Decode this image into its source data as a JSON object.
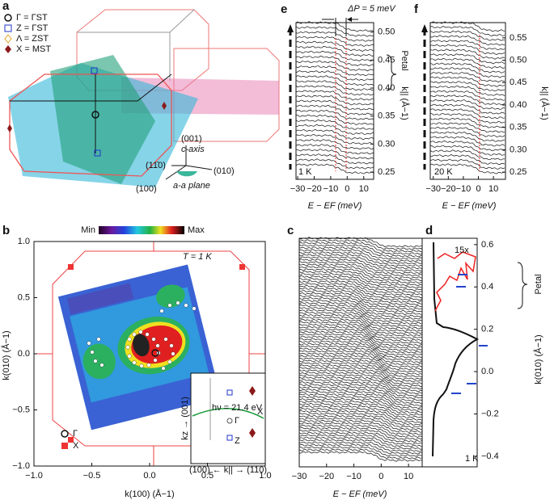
{
  "a": {
    "label": "a",
    "legend": [
      "Γ = ΓST",
      "Z = ΓST",
      "Λ = ZST",
      "X = MST"
    ],
    "axes": [
      "(001)",
      "c-axis",
      "(11̄0)",
      "(010)",
      "(100)",
      "a-a plane"
    ]
  },
  "b": {
    "label": "b",
    "colorbar": [
      "Min",
      "Max"
    ],
    "temperature": "T = 1 K",
    "legend": [
      "Γ",
      "X"
    ],
    "xlabel": "k(100) (Å−1)",
    "ylabel": "k(010) (Å−1)",
    "xlim": [
      -1,
      1
    ],
    "ylim": [
      -1,
      1
    ],
    "xticks": [
      {
        "value": -1,
        "label": "−1.0"
      },
      {
        "value": -0.5,
        "label": "−0.5"
      },
      {
        "value": 0,
        "label": "0.0"
      },
      {
        "value": 0.5,
        "label": "0.5"
      },
      {
        "value": 1,
        "label": "1.0"
      }
    ],
    "yticks": [
      {
        "value": -1,
        "label": "−1.0"
      },
      {
        "value": -0.5,
        "label": "−0.5"
      },
      {
        "value": 0,
        "label": "0.0"
      },
      {
        "value": 0.5,
        "label": "0.5"
      },
      {
        "value": 1,
        "label": "1.0"
      }
    ],
    "inset": {
      "energy": "hν = 21.4 eV",
      "points": [
        "Γ",
        "Z",
        "X"
      ],
      "ylabel": "kz → (001)",
      "xlabel": "(100) ← k|| → (110)"
    }
  },
  "c": {
    "label": "c",
    "xlabel": "E − EF (meV)",
    "xlim": [
      -30,
      15
    ],
    "xticks": [
      {
        "value": -30,
        "label": "−30"
      },
      {
        "value": -20,
        "label": "−20"
      },
      {
        "value": -10,
        "label": "−10"
      },
      0,
      10
    ]
  },
  "d": {
    "label": "d",
    "ylabel": "k(010) (Å−1)",
    "ylim": [
      -0.45,
      0.63
    ],
    "yticks": [
      {
        "value": -0.4,
        "label": "−0.4"
      },
      {
        "value": -0.2,
        "label": "−0.2"
      },
      {
        "value": 0,
        "label": "0.0"
      },
      0.2,
      0.4,
      0.6
    ],
    "scale": "15x",
    "petal": "Petal",
    "temperature": "1 K"
  },
  "e": {
    "label": "e",
    "gap": "ΔP = 5 meV",
    "petal": "Petal",
    "temperature": "1 K",
    "xlabel": "E − EF (meV)",
    "ylabel": "k|| (Å−1)",
    "xlim": [
      -31,
      16
    ],
    "ylim": [
      0.237,
      0.517
    ],
    "xticks": [
      {
        "value": -30,
        "label": "−30"
      },
      {
        "value": -20,
        "label": "−20"
      },
      {
        "value": -10,
        "label": "−10"
      },
      0,
      10
    ],
    "yticks": [
      0.25,
      {
        "value": 0.3,
        "label": "0.30"
      },
      0.35,
      {
        "value": 0.4,
        "label": "0.40"
      },
      0.45,
      {
        "value": 0.5,
        "label": "0.50"
      }
    ]
  },
  "f": {
    "label": "f",
    "temperature": "20 K",
    "xlabel": "E − EF (meV)",
    "ylabel": "k|| (Å−1)",
    "xlim": [
      -32,
      18
    ],
    "ylim": [
      0.234,
      0.584
    ],
    "xticks": [
      {
        "value": -30,
        "label": "−30"
      },
      {
        "value": -20,
        "label": "−20"
      },
      {
        "value": -10,
        "label": "−10"
      },
      0,
      10
    ],
    "yticks": [
      0.25,
      {
        "value": 0.3,
        "label": "0.30"
      },
      0.35,
      {
        "value": 0.4,
        "label": "0.40"
      },
      0.45,
      {
        "value": 0.5,
        "label": "0.50"
      },
      0.55
    ]
  }
}
